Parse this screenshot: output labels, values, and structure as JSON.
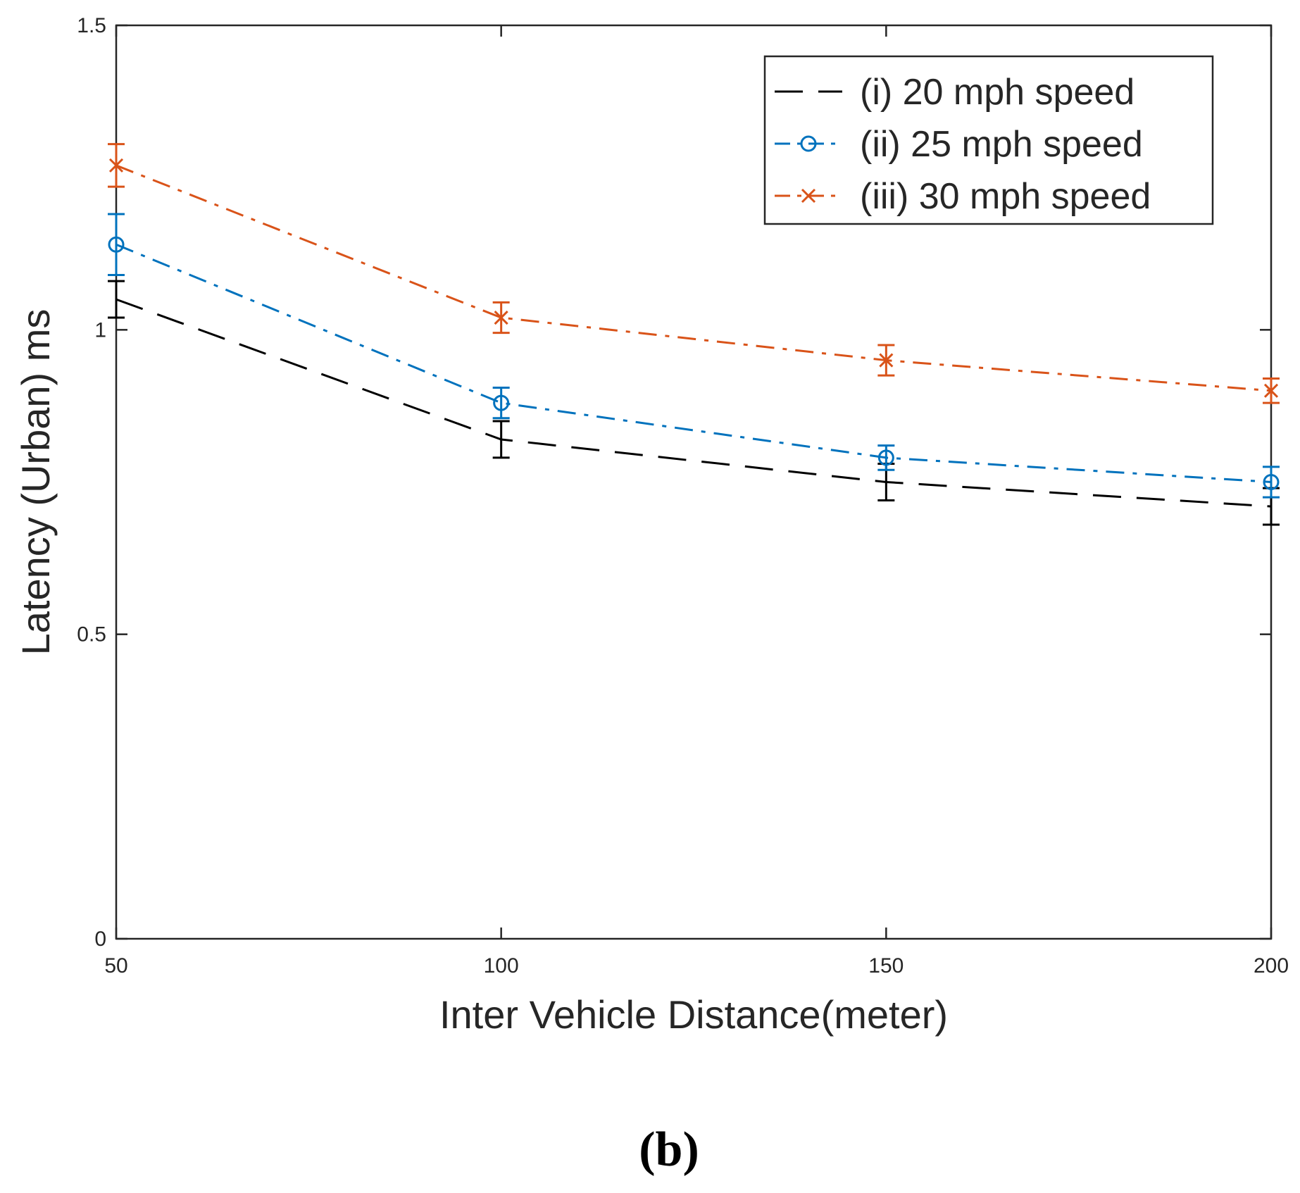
{
  "chart_data": {
    "type": "line",
    "title": "",
    "xlabel": "Inter Vehicle Distance(meter)",
    "ylabel": "Latency (Urban) ms",
    "x": [
      50,
      100,
      150,
      200
    ],
    "xlim": [
      50,
      200
    ],
    "ylim": [
      0,
      1.5
    ],
    "xticks": [
      "50",
      "100",
      "150",
      "200"
    ],
    "yticks": [
      "0",
      "0.5",
      "1",
      "1.5"
    ],
    "grid": false,
    "legend_position": "top-right",
    "series": [
      {
        "name": "(i) 20 mph speed",
        "values": [
          1.05,
          0.82,
          0.75,
          0.71
        ],
        "errors": [
          0.03,
          0.03,
          0.03,
          0.03
        ],
        "color": "#000000",
        "line_style": "dashed",
        "marker": "none"
      },
      {
        "name": "(ii) 25 mph speed",
        "values": [
          1.14,
          0.88,
          0.79,
          0.75
        ],
        "errors": [
          0.05,
          0.025,
          0.02,
          0.025
        ],
        "color": "#0072BD",
        "line_style": "dash-dot",
        "marker": "circle"
      },
      {
        "name": "(iii) 30 mph speed",
        "values": [
          1.27,
          1.02,
          0.95,
          0.9
        ],
        "errors": [
          0.035,
          0.025,
          0.025,
          0.02
        ],
        "color": "#D95319",
        "line_style": "dash-dot",
        "marker": "x"
      }
    ]
  },
  "panel_label": "(b)"
}
